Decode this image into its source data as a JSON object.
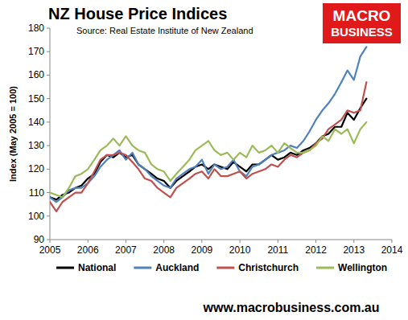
{
  "chart_data": {
    "type": "line",
    "title": "NZ House Price Indices",
    "subtitle": "Source: Real Estate Institute of New Zealand",
    "y_label": "Index (May 2005 = 100)",
    "logo_lines": [
      "MACRO",
      "BUSINESS"
    ],
    "footer": "www.macrobusiness.com.au",
    "x": [
      2005,
      2005.17,
      2005.33,
      2005.5,
      2005.67,
      2005.83,
      2006,
      2006.17,
      2006.33,
      2006.5,
      2006.67,
      2006.83,
      2007,
      2007.17,
      2007.33,
      2007.5,
      2007.67,
      2007.83,
      2008,
      2008.17,
      2008.33,
      2008.5,
      2008.67,
      2008.83,
      2009,
      2009.17,
      2009.33,
      2009.5,
      2009.67,
      2009.83,
      2010,
      2010.17,
      2010.33,
      2010.5,
      2010.67,
      2010.83,
      2011,
      2011.17,
      2011.33,
      2011.5,
      2011.67,
      2011.83,
      2012,
      2012.17,
      2012.33,
      2012.5,
      2012.67,
      2012.83,
      2013,
      2013.17,
      2013.33
    ],
    "series": [
      {
        "name": "National",
        "color": "#000000",
        "values": [
          108,
          107,
          109,
          110,
          112,
          113,
          116,
          118,
          123,
          126,
          125,
          127,
          125,
          126,
          122,
          120,
          118,
          116,
          115,
          112,
          115,
          117,
          119,
          121,
          122,
          120,
          122,
          121,
          120,
          123,
          121,
          119,
          122,
          122,
          124,
          126,
          124,
          125,
          127,
          126,
          128,
          129,
          131,
          134,
          135,
          138,
          138,
          144,
          141,
          146,
          150
        ]
      },
      {
        "name": "Auckland",
        "color": "#4f81bd",
        "values": [
          108,
          106,
          108,
          111,
          112,
          112,
          114,
          117,
          121,
          124,
          126,
          128,
          124,
          127,
          122,
          120,
          117,
          115,
          113,
          112,
          116,
          118,
          120,
          121,
          124,
          118,
          122,
          120,
          121,
          124,
          119,
          117,
          121,
          122,
          124,
          126,
          127,
          128,
          130,
          129,
          132,
          136,
          141,
          145,
          148,
          152,
          157,
          162,
          158,
          168,
          172
        ]
      },
      {
        "name": "Christchurch",
        "color": "#c0504d",
        "values": [
          106,
          102,
          106,
          108,
          110,
          110,
          114,
          119,
          124,
          126,
          126,
          127,
          126,
          123,
          120,
          116,
          115,
          112,
          110,
          108,
          112,
          114,
          116,
          118,
          119,
          116,
          120,
          117,
          117,
          118,
          119,
          116,
          118,
          119,
          120,
          122,
          121,
          124,
          126,
          125,
          127,
          128,
          131,
          133,
          137,
          139,
          141,
          145,
          144,
          145,
          157
        ]
      },
      {
        "name": "Wellington",
        "color": "#9bbb59",
        "values": [
          110,
          109,
          108,
          112,
          117,
          118,
          120,
          124,
          128,
          130,
          133,
          130,
          134,
          130,
          128,
          127,
          122,
          120,
          119,
          115,
          118,
          121,
          124,
          128,
          130,
          132,
          128,
          126,
          127,
          124,
          127,
          125,
          130,
          127,
          128,
          130,
          127,
          131,
          129,
          127,
          127,
          128,
          130,
          134,
          132,
          137,
          135,
          137,
          131,
          137,
          140
        ]
      }
    ],
    "xlim": [
      2005,
      2014
    ],
    "xticks": [
      2005,
      2006,
      2007,
      2008,
      2009,
      2010,
      2011,
      2012,
      2013,
      2014
    ],
    "ylim": [
      90,
      180
    ],
    "yticks": [
      90,
      100,
      110,
      120,
      130,
      140,
      150,
      160,
      170,
      180
    ],
    "grid": false,
    "legend": "bottom"
  }
}
